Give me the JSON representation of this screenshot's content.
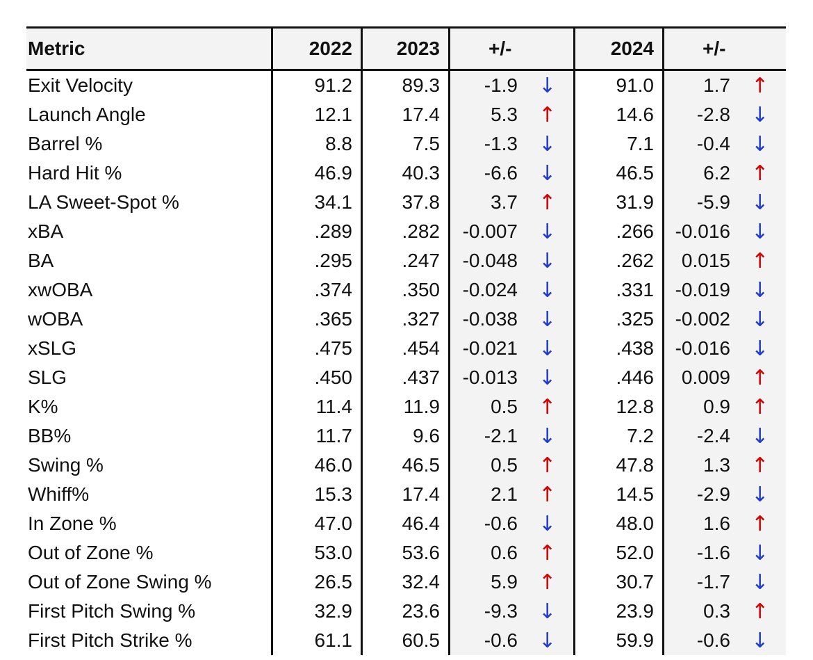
{
  "headers": {
    "metric": "Metric",
    "y2022": "2022",
    "y2023": "2023",
    "d2023": "+/-",
    "y2024": "2024",
    "d2024": "+/-"
  },
  "colors": {
    "up": "#d40000",
    "down": "#1f3bd1",
    "delta_bg": "#f3f3f3"
  },
  "rows": [
    {
      "metric": "Exit Velocity",
      "y2022": "91.2",
      "y2023": "89.3",
      "d2023": "-1.9",
      "dir2023": "down",
      "y2024": "91.0",
      "d2024": "1.7",
      "dir2024": "up"
    },
    {
      "metric": "Launch Angle",
      "y2022": "12.1",
      "y2023": "17.4",
      "d2023": "5.3",
      "dir2023": "up",
      "y2024": "14.6",
      "d2024": "-2.8",
      "dir2024": "down"
    },
    {
      "metric": "Barrel %",
      "y2022": "8.8",
      "y2023": "7.5",
      "d2023": "-1.3",
      "dir2023": "down",
      "y2024": "7.1",
      "d2024": "-0.4",
      "dir2024": "down"
    },
    {
      "metric": "Hard Hit %",
      "y2022": "46.9",
      "y2023": "40.3",
      "d2023": "-6.6",
      "dir2023": "down",
      "y2024": "46.5",
      "d2024": "6.2",
      "dir2024": "up"
    },
    {
      "metric": "LA Sweet-Spot %",
      "y2022": "34.1",
      "y2023": "37.8",
      "d2023": "3.7",
      "dir2023": "up",
      "y2024": "31.9",
      "d2024": "-5.9",
      "dir2024": "down"
    },
    {
      "metric": "xBA",
      "y2022": ".289",
      "y2023": ".282",
      "d2023": "-0.007",
      "dir2023": "down",
      "y2024": ".266",
      "d2024": "-0.016",
      "dir2024": "down"
    },
    {
      "metric": "BA",
      "y2022": ".295",
      "y2023": ".247",
      "d2023": "-0.048",
      "dir2023": "down",
      "y2024": ".262",
      "d2024": "0.015",
      "dir2024": "up"
    },
    {
      "metric": "xwOBA",
      "y2022": ".374",
      "y2023": ".350",
      "d2023": "-0.024",
      "dir2023": "down",
      "y2024": ".331",
      "d2024": "-0.019",
      "dir2024": "down"
    },
    {
      "metric": "wOBA",
      "y2022": ".365",
      "y2023": ".327",
      "d2023": "-0.038",
      "dir2023": "down",
      "y2024": ".325",
      "d2024": "-0.002",
      "dir2024": "down"
    },
    {
      "metric": "xSLG",
      "y2022": ".475",
      "y2023": ".454",
      "d2023": "-0.021",
      "dir2023": "down",
      "y2024": ".438",
      "d2024": "-0.016",
      "dir2024": "down"
    },
    {
      "metric": "SLG",
      "y2022": ".450",
      "y2023": ".437",
      "d2023": "-0.013",
      "dir2023": "down",
      "y2024": ".446",
      "d2024": "0.009",
      "dir2024": "up"
    },
    {
      "metric": "K%",
      "y2022": "11.4",
      "y2023": "11.9",
      "d2023": "0.5",
      "dir2023": "up",
      "y2024": "12.8",
      "d2024": "0.9",
      "dir2024": "up"
    },
    {
      "metric": "BB%",
      "y2022": "11.7",
      "y2023": "9.6",
      "d2023": "-2.1",
      "dir2023": "down",
      "y2024": "7.2",
      "d2024": "-2.4",
      "dir2024": "down"
    },
    {
      "metric": "Swing %",
      "y2022": "46.0",
      "y2023": "46.5",
      "d2023": "0.5",
      "dir2023": "up",
      "y2024": "47.8",
      "d2024": "1.3",
      "dir2024": "up"
    },
    {
      "metric": "Whiff%",
      "y2022": "15.3",
      "y2023": "17.4",
      "d2023": "2.1",
      "dir2023": "up",
      "y2024": "14.5",
      "d2024": "-2.9",
      "dir2024": "down"
    },
    {
      "metric": "In Zone %",
      "y2022": "47.0",
      "y2023": "46.4",
      "d2023": "-0.6",
      "dir2023": "down",
      "y2024": "48.0",
      "d2024": "1.6",
      "dir2024": "up"
    },
    {
      "metric": "Out of Zone %",
      "y2022": "53.0",
      "y2023": "53.6",
      "d2023": "0.6",
      "dir2023": "up",
      "y2024": "52.0",
      "d2024": "-1.6",
      "dir2024": "down"
    },
    {
      "metric": "Out of Zone Swing %",
      "y2022": "26.5",
      "y2023": "32.4",
      "d2023": "5.9",
      "dir2023": "up",
      "y2024": "30.7",
      "d2024": "-1.7",
      "dir2024": "down"
    },
    {
      "metric": "First Pitch Swing %",
      "y2022": "32.9",
      "y2023": "23.6",
      "d2023": "-9.3",
      "dir2023": "down",
      "y2024": "23.9",
      "d2024": "0.3",
      "dir2024": "up"
    },
    {
      "metric": "First Pitch Strike %",
      "y2022": "61.1",
      "y2023": "60.5",
      "d2023": "-0.6",
      "dir2023": "down",
      "y2024": "59.9",
      "d2024": "-0.6",
      "dir2024": "down"
    }
  ]
}
